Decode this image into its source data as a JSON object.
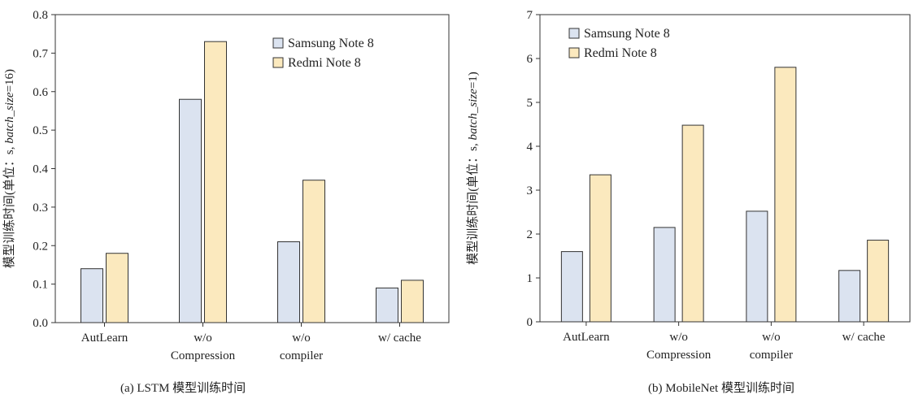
{
  "colors": {
    "series_1": "#dbe3f0",
    "series_2": "#fbe9be",
    "axis": "#333333",
    "bar_stroke": "#333333"
  },
  "captions": {
    "a": "(a) LSTM 模型训练时间",
    "b": "(b) MobileNet 模型训练时间"
  },
  "chart_data": [
    {
      "id": "a",
      "type": "bar",
      "ylabel_prefix": "模型训练时间(单位：s, ",
      "ylabel_italic": "batch_size",
      "ylabel_suffix": "=16)",
      "ylim": [
        0,
        0.8
      ],
      "yticks": [
        "0.0",
        "0.1",
        "0.2",
        "0.3",
        "0.4",
        "0.5",
        "0.6",
        "0.7",
        "0.8"
      ],
      "categories": [
        [
          "AutLearn"
        ],
        [
          "w/o",
          "Compression"
        ],
        [
          "w/o",
          "compiler"
        ],
        [
          "w/ cache"
        ]
      ],
      "series": [
        {
          "name": "Samsung Note 8",
          "values": [
            0.14,
            0.58,
            0.21,
            0.09
          ]
        },
        {
          "name": "Redmi Note 8",
          "values": [
            0.18,
            0.73,
            0.37,
            0.11
          ]
        }
      ],
      "legend_position": "top-right",
      "grid": false
    },
    {
      "id": "b",
      "type": "bar",
      "ylabel_prefix": "模型训练时间(单位：s, ",
      "ylabel_italic": "batch_size",
      "ylabel_suffix": "=1)",
      "ylim": [
        0,
        7
      ],
      "yticks": [
        "0",
        "1",
        "2",
        "3",
        "4",
        "5",
        "6",
        "7"
      ],
      "categories": [
        [
          "AutLearn"
        ],
        [
          "w/o",
          "Compression"
        ],
        [
          "w/o",
          "compiler"
        ],
        [
          "w/ cache"
        ]
      ],
      "series": [
        {
          "name": "Samsung Note 8",
          "values": [
            1.6,
            2.15,
            2.52,
            1.17
          ]
        },
        {
          "name": "Redmi Note 8",
          "values": [
            3.35,
            4.48,
            5.8,
            1.86
          ]
        }
      ],
      "legend_position": "top-left",
      "grid": false
    }
  ]
}
